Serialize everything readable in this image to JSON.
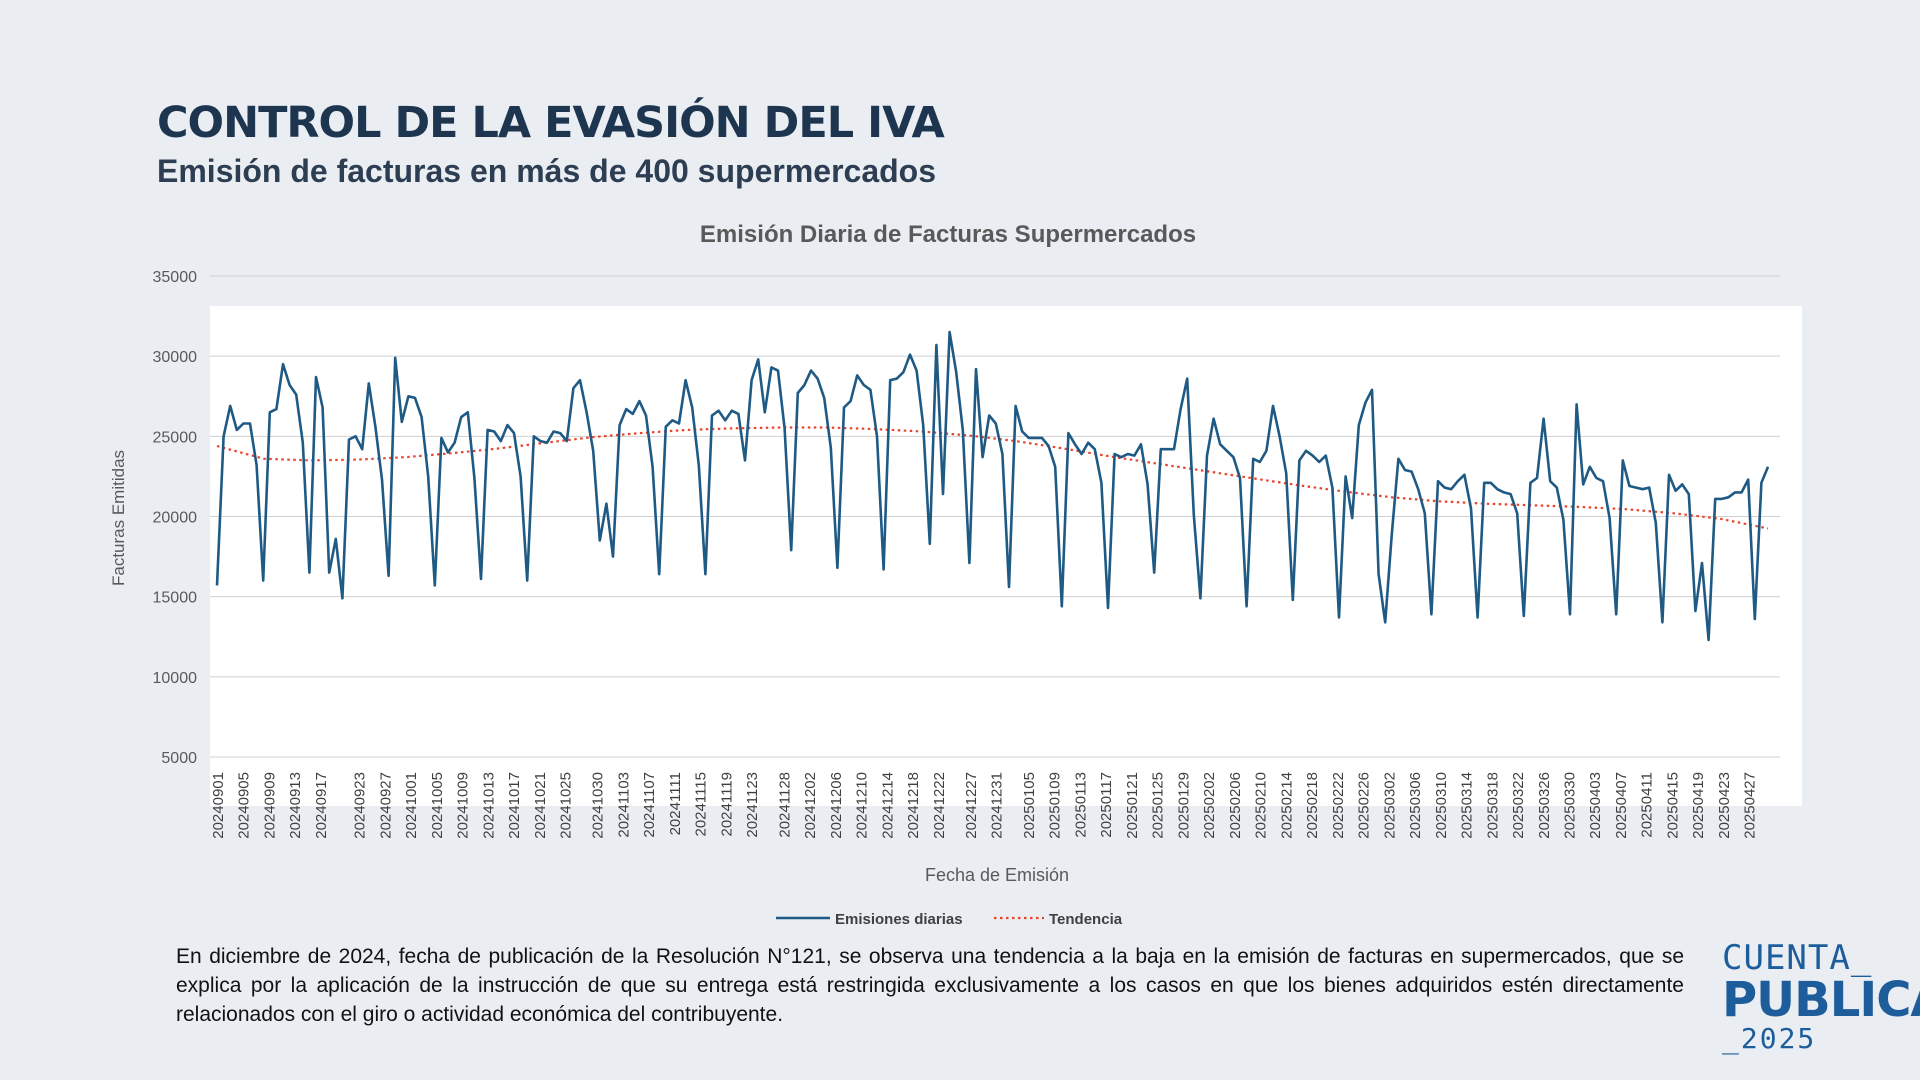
{
  "header": {
    "title": "CONTROL DE LA EVASIÓN DEL IVA",
    "subtitle": "Emisión de facturas en más de 400 supermercados"
  },
  "description": "En diciembre de 2024, fecha de publicación de la Resolución N°121, se observa una tendencia a la baja en la emisión de facturas en supermercados, que se explica por la aplicación de la instrucción de que su entrega está restringida exclusivamente a los casos en que los bienes adquiridos estén directamente relacionados con el giro o actividad económica del contribuyente.",
  "logo": {
    "line1": "CUENTA_",
    "line2": "PUBLICA",
    "line3": "_2025"
  },
  "colors": {
    "series": "#1f5a85",
    "trend": "#e8432b",
    "title": "#1e3550"
  },
  "chart_data": {
    "type": "line",
    "title": "Emisión Diaria de Facturas Supermercados",
    "xlabel": "Fecha de Emisión",
    "ylabel": "Facturas Emitidas",
    "ylim": [
      5000,
      35000
    ],
    "yticks": [
      5000,
      10000,
      15000,
      20000,
      25000,
      30000,
      35000
    ],
    "grid": true,
    "legend_position": "bottom",
    "x_start": "20240901",
    "x_end": "20250430",
    "x_tick_labels": [
      "20240901",
      "20240905",
      "20240909",
      "20240913",
      "20240917",
      "20240923",
      "20240927",
      "20241001",
      "20241005",
      "20241009",
      "20241013",
      "20241017",
      "20241021",
      "20241025",
      "20241030",
      "20241103",
      "20241107",
      "20241111",
      "20241115",
      "20241119",
      "20241123",
      "20241128",
      "20241202",
      "20241206",
      "20241210",
      "20241214",
      "20241218",
      "20241222",
      "20241227",
      "20241231",
      "20250105",
      "20250109",
      "20250113",
      "20250117",
      "20250121",
      "20250125",
      "20250129",
      "20250202",
      "20250206",
      "20250210",
      "20250214",
      "20250218",
      "20250222",
      "20250226",
      "20250302",
      "20250306",
      "20250310",
      "20250314",
      "20250318",
      "20250322",
      "20250326",
      "20250330",
      "20250403",
      "20250407",
      "20250411",
      "20250415",
      "20250419",
      "20250423",
      "20250427"
    ],
    "series": [
      {
        "name": "Emisiones diarias",
        "values": [
          15700,
          25000,
          26900,
          25400,
          25800,
          25800,
          23200,
          16000,
          26500,
          26700,
          29500,
          28200,
          27600,
          24600,
          16500,
          28700,
          26800,
          16500,
          18600,
          14900,
          24800,
          25000,
          24200,
          28300,
          25600,
          22300,
          16300,
          29900,
          25900,
          27500,
          27400,
          26200,
          22500,
          15700,
          24900,
          24000,
          24600,
          26200,
          26500,
          22400,
          16100,
          25400,
          25300,
          24700,
          25700,
          25200,
          22500,
          16000,
          25000,
          24700,
          24600,
          25300,
          25200,
          24700,
          28000,
          28500,
          26500,
          24100,
          18500,
          20800,
          17500,
          25700,
          26700,
          26400,
          27200,
          26300,
          23100,
          16400,
          25600,
          26000,
          25800,
          28500,
          26800,
          23200,
          16400,
          26300,
          26600,
          26000,
          26600,
          26400,
          23500,
          28500,
          29800,
          26500,
          29300,
          29100,
          25500,
          17900,
          27700,
          28200,
          29100,
          28600,
          27400,
          24300,
          16800,
          26800,
          27200,
          28800,
          28200,
          27900,
          25000,
          16700,
          28500,
          28600,
          29000,
          30100,
          29100,
          25700,
          18300,
          30700,
          21400,
          31500,
          29000,
          25400,
          17100,
          29200,
          23700,
          26300,
          25800,
          23900,
          15600,
          26900,
          25300,
          24900,
          24900,
          24900,
          24400,
          23100,
          14400,
          25200,
          24500,
          23900,
          24600,
          24200,
          22100,
          14300,
          23900,
          23700,
          23900,
          23800,
          24500,
          22000,
          16500,
          24200,
          24200,
          24200,
          26700,
          28600,
          20100,
          14900,
          23800,
          26100,
          24500,
          24100,
          23700,
          22400,
          14400,
          23600,
          23400,
          24100,
          26900,
          25000,
          22700,
          14800,
          23500,
          24100,
          23800,
          23400,
          23800,
          21800,
          13700,
          22500,
          19900,
          25700,
          27100,
          27900,
          16400,
          13400,
          18900,
          23600,
          22900,
          22800,
          21700,
          20200,
          13900,
          22200,
          21800,
          21700,
          22200,
          22600,
          20500,
          13700,
          22100,
          22100,
          21700,
          21500,
          21400,
          20200,
          13800,
          22100,
          22400,
          26100,
          22200,
          21800,
          19800,
          13900,
          27000,
          22000,
          23100,
          22400,
          22200,
          19900,
          13900,
          23500,
          21900,
          21800,
          21700,
          21800,
          19600,
          13400,
          22600,
          21600,
          22000,
          21400,
          14100,
          17100,
          12300,
          21100,
          21100,
          21200,
          21500,
          21500,
          22300,
          13600,
          22100,
          23100
        ]
      },
      {
        "name": "Tendencia",
        "values": [
          24400,
          23600,
          23500,
          23550,
          23700,
          23950,
          24250,
          24600,
          24950,
          25200,
          25400,
          25500,
          25550,
          25550,
          25450,
          25300,
          25050,
          24700,
          24250,
          23750,
          23300,
          22850,
          22400,
          21950,
          21550,
          21200,
          20950,
          20800,
          20700,
          20600,
          20450,
          20200,
          19850,
          19250
        ]
      }
    ]
  }
}
